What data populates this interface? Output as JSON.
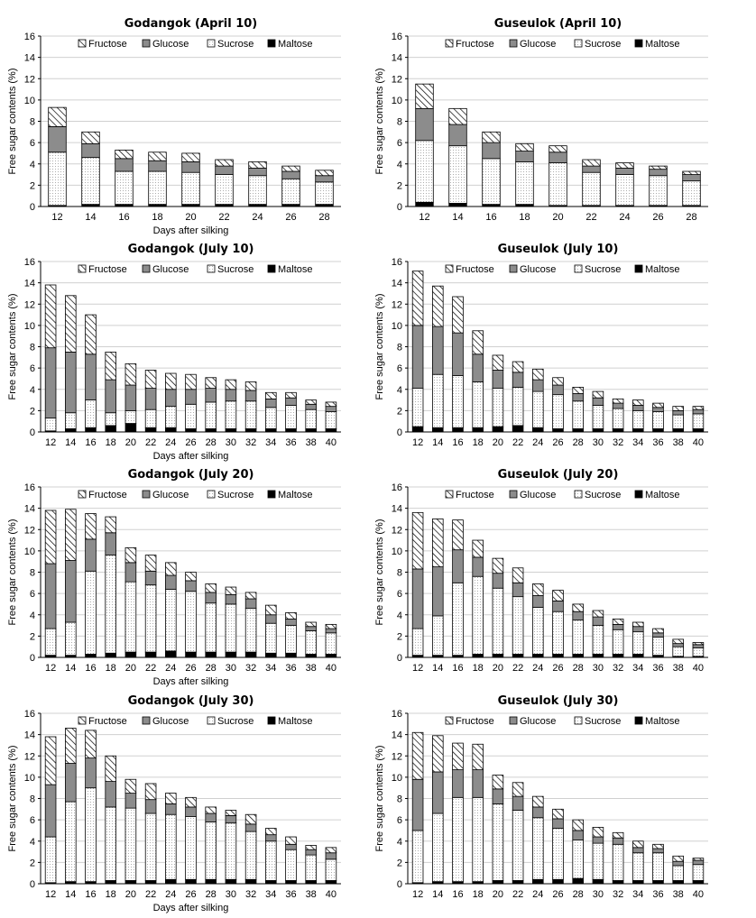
{
  "figure": {
    "segment_order": [
      "Maltose",
      "Sucrose",
      "Glucose",
      "Fructose"
    ],
    "legend_order": [
      "Fructose",
      "Glucose",
      "Sucrose",
      "Maltose"
    ],
    "colors": {
      "Fructose": "#ffffff",
      "Glucose": "#8c8c8c",
      "Sucrose": "#ffffff",
      "Maltose": "#000000"
    },
    "patterns": {
      "Fructose": "diagonal-hatch",
      "Glucose": "solid-gray",
      "Sucrose": "fine-dots",
      "Maltose": "solid-black"
    }
  },
  "chart_data": [
    {
      "type": "bar",
      "stacked": true,
      "title": "Godangok (April 10)",
      "xlabel": "Days after silking",
      "ylabel": "Free sugar contents (%)",
      "ylim": [
        0,
        16
      ],
      "yticks": [
        0,
        2,
        4,
        6,
        8,
        10,
        12,
        14,
        16
      ],
      "grid": true,
      "legend": "top",
      "categories": [
        "12",
        "14",
        "16",
        "18",
        "20",
        "22",
        "24",
        "26",
        "28"
      ],
      "series": [
        {
          "name": "Maltose",
          "values": [
            0.1,
            0.2,
            0.2,
            0.2,
            0.2,
            0.2,
            0.2,
            0.2,
            0.2
          ]
        },
        {
          "name": "Sucrose",
          "values": [
            5.0,
            4.4,
            3.1,
            3.1,
            3.0,
            2.8,
            2.7,
            2.4,
            2.1
          ]
        },
        {
          "name": "Glucose",
          "values": [
            2.4,
            1.3,
            1.2,
            1.0,
            1.0,
            0.8,
            0.7,
            0.7,
            0.6
          ]
        },
        {
          "name": "Fructose",
          "values": [
            1.8,
            1.1,
            0.8,
            0.8,
            0.8,
            0.6,
            0.6,
            0.5,
            0.5
          ]
        }
      ]
    },
    {
      "type": "bar",
      "stacked": true,
      "title": "Guseulok (April 10)",
      "xlabel": "",
      "ylabel": "Free sugar contents (%)",
      "ylim": [
        0,
        16
      ],
      "yticks": [
        0,
        2,
        4,
        6,
        8,
        10,
        12,
        14,
        16
      ],
      "grid": true,
      "legend": "top",
      "categories": [
        "12",
        "14",
        "16",
        "18",
        "20",
        "22",
        "24",
        "26",
        "28"
      ],
      "series": [
        {
          "name": "Maltose",
          "values": [
            0.4,
            0.3,
            0.2,
            0.2,
            0.1,
            0.1,
            0.1,
            0.1,
            0.1
          ]
        },
        {
          "name": "Sucrose",
          "values": [
            5.8,
            5.4,
            4.3,
            4.0,
            4.0,
            3.1,
            2.9,
            2.8,
            2.3
          ]
        },
        {
          "name": "Glucose",
          "values": [
            3.0,
            2.0,
            1.5,
            1.0,
            1.0,
            0.6,
            0.6,
            0.6,
            0.6
          ]
        },
        {
          "name": "Fructose",
          "values": [
            2.3,
            1.5,
            1.0,
            0.7,
            0.6,
            0.6,
            0.5,
            0.3,
            0.3
          ]
        }
      ]
    },
    {
      "type": "bar",
      "stacked": true,
      "title": "Godangok (July 10)",
      "xlabel": "Days after silking",
      "ylabel": "Free sugar contents (%)",
      "ylim": [
        0,
        16
      ],
      "yticks": [
        0,
        2,
        4,
        6,
        8,
        10,
        12,
        14,
        16
      ],
      "grid": true,
      "legend": "top",
      "categories": [
        "12",
        "14",
        "16",
        "18",
        "20",
        "22",
        "24",
        "26",
        "28",
        "30",
        "32",
        "34",
        "36",
        "38",
        "40"
      ],
      "series": [
        {
          "name": "Maltose",
          "values": [
            0.1,
            0.3,
            0.4,
            0.6,
            0.8,
            0.4,
            0.4,
            0.3,
            0.3,
            0.3,
            0.3,
            0.3,
            0.3,
            0.3,
            0.3
          ]
        },
        {
          "name": "Sucrose",
          "values": [
            1.2,
            1.5,
            2.6,
            1.2,
            1.2,
            1.7,
            2.0,
            2.3,
            2.5,
            2.6,
            2.6,
            2.0,
            2.2,
            1.8,
            1.6
          ]
        },
        {
          "name": "Glucose",
          "values": [
            6.6,
            5.7,
            4.3,
            3.1,
            2.4,
            2.0,
            1.6,
            1.4,
            1.3,
            1.1,
            1.0,
            0.8,
            0.7,
            0.5,
            0.5
          ]
        },
        {
          "name": "Fructose",
          "values": [
            5.9,
            5.3,
            3.7,
            2.6,
            2.0,
            1.7,
            1.5,
            1.4,
            1.0,
            0.9,
            0.8,
            0.6,
            0.5,
            0.4,
            0.4
          ]
        }
      ]
    },
    {
      "type": "bar",
      "stacked": true,
      "title": "Guseulok (July 10)",
      "xlabel": "",
      "ylabel": "Free sugar contents (%)",
      "ylim": [
        0,
        16
      ],
      "yticks": [
        0,
        2,
        4,
        6,
        8,
        10,
        12,
        14,
        16
      ],
      "grid": true,
      "legend": "top",
      "categories": [
        "12",
        "14",
        "16",
        "18",
        "20",
        "22",
        "24",
        "26",
        "28",
        "30",
        "32",
        "34",
        "36",
        "38",
        "40"
      ],
      "series": [
        {
          "name": "Maltose",
          "values": [
            0.5,
            0.4,
            0.4,
            0.4,
            0.5,
            0.6,
            0.4,
            0.3,
            0.3,
            0.3,
            0.3,
            0.3,
            0.3,
            0.3,
            0.3
          ]
        },
        {
          "name": "Sucrose",
          "values": [
            3.6,
            5.0,
            4.9,
            4.3,
            3.6,
            3.6,
            3.4,
            3.2,
            2.6,
            2.2,
            1.9,
            1.7,
            1.6,
            1.3,
            1.4
          ]
        },
        {
          "name": "Glucose",
          "values": [
            5.9,
            4.5,
            4.0,
            2.6,
            1.7,
            1.4,
            1.1,
            0.9,
            0.7,
            0.7,
            0.5,
            0.5,
            0.4,
            0.4,
            0.4
          ]
        },
        {
          "name": "Fructose",
          "values": [
            5.1,
            3.8,
            3.4,
            2.2,
            1.4,
            1.0,
            1.0,
            0.7,
            0.6,
            0.6,
            0.4,
            0.5,
            0.4,
            0.4,
            0.3
          ]
        }
      ]
    },
    {
      "type": "bar",
      "stacked": true,
      "title": "Godangok (July 20)",
      "xlabel": "Days after silking",
      "ylabel": "Free sugar contents (%)",
      "ylim": [
        0,
        16
      ],
      "yticks": [
        0,
        2,
        4,
        6,
        8,
        10,
        12,
        14,
        16
      ],
      "grid": true,
      "legend": "top",
      "categories": [
        "12",
        "14",
        "16",
        "18",
        "20",
        "22",
        "24",
        "26",
        "28",
        "30",
        "32",
        "34",
        "36",
        "38",
        "40"
      ],
      "series": [
        {
          "name": "Maltose",
          "values": [
            0.2,
            0.2,
            0.3,
            0.4,
            0.5,
            0.5,
            0.6,
            0.5,
            0.5,
            0.5,
            0.5,
            0.4,
            0.4,
            0.3,
            0.3
          ]
        },
        {
          "name": "Sucrose",
          "values": [
            2.5,
            3.1,
            7.8,
            9.2,
            6.6,
            6.3,
            5.8,
            5.7,
            4.6,
            4.5,
            4.1,
            2.8,
            2.6,
            2.2,
            2.0
          ]
        },
        {
          "name": "Glucose",
          "values": [
            6.1,
            5.8,
            3.0,
            2.1,
            1.8,
            1.3,
            1.3,
            1.0,
            1.0,
            0.9,
            0.9,
            0.8,
            0.6,
            0.4,
            0.4
          ]
        },
        {
          "name": "Fructose",
          "values": [
            5.0,
            4.8,
            2.4,
            1.5,
            1.4,
            1.5,
            1.2,
            0.8,
            0.8,
            0.7,
            0.6,
            0.9,
            0.6,
            0.4,
            0.4
          ]
        }
      ]
    },
    {
      "type": "bar",
      "stacked": true,
      "title": "Guseulok (July 20)",
      "xlabel": "",
      "ylabel": "Free sugar contents (%)",
      "ylim": [
        0,
        16
      ],
      "yticks": [
        0,
        2,
        4,
        6,
        8,
        10,
        12,
        14,
        16
      ],
      "grid": true,
      "legend": "top",
      "categories": [
        "12",
        "14",
        "16",
        "18",
        "20",
        "22",
        "24",
        "26",
        "28",
        "30",
        "32",
        "34",
        "36",
        "38",
        "40"
      ],
      "series": [
        {
          "name": "Maltose",
          "values": [
            0.2,
            0.2,
            0.2,
            0.3,
            0.3,
            0.3,
            0.3,
            0.3,
            0.3,
            0.3,
            0.3,
            0.3,
            0.2,
            0.1,
            0.1
          ]
        },
        {
          "name": "Sucrose",
          "values": [
            2.5,
            3.7,
            6.8,
            7.3,
            6.2,
            5.4,
            4.4,
            4.0,
            3.2,
            2.7,
            2.3,
            2.1,
            1.7,
            0.9,
            0.8
          ]
        },
        {
          "name": "Glucose",
          "values": [
            5.6,
            4.6,
            3.1,
            1.8,
            1.4,
            1.3,
            1.1,
            1.0,
            0.8,
            0.8,
            0.5,
            0.5,
            0.4,
            0.3,
            0.3
          ]
        },
        {
          "name": "Fructose",
          "values": [
            5.3,
            4.5,
            2.8,
            1.6,
            1.4,
            1.4,
            1.1,
            1.0,
            0.7,
            0.6,
            0.5,
            0.4,
            0.4,
            0.4,
            0.2
          ]
        }
      ]
    },
    {
      "type": "bar",
      "stacked": true,
      "title": "Godangok (July 30)",
      "xlabel": "Days after silking",
      "ylabel": "Free sugar contents (%)",
      "ylim": [
        0,
        16
      ],
      "yticks": [
        0,
        2,
        4,
        6,
        8,
        10,
        12,
        14,
        16
      ],
      "grid": true,
      "legend": "top",
      "categories": [
        "12",
        "14",
        "16",
        "18",
        "20",
        "22",
        "24",
        "26",
        "28",
        "30",
        "32",
        "34",
        "36",
        "38",
        "40"
      ],
      "series": [
        {
          "name": "Maltose",
          "values": [
            0.1,
            0.2,
            0.2,
            0.3,
            0.3,
            0.3,
            0.4,
            0.4,
            0.4,
            0.4,
            0.4,
            0.3,
            0.3,
            0.3,
            0.3
          ]
        },
        {
          "name": "Sucrose",
          "values": [
            4.3,
            7.5,
            8.8,
            6.9,
            6.8,
            6.3,
            6.1,
            5.9,
            5.4,
            5.3,
            4.5,
            3.7,
            2.9,
            2.4,
            2.0
          ]
        },
        {
          "name": "Glucose",
          "values": [
            4.9,
            3.6,
            2.8,
            2.4,
            1.4,
            1.3,
            1.0,
            0.9,
            0.8,
            0.7,
            0.7,
            0.6,
            0.5,
            0.5,
            0.6
          ]
        },
        {
          "name": "Fructose",
          "values": [
            4.5,
            3.3,
            2.6,
            2.4,
            1.3,
            1.5,
            1.0,
            0.9,
            0.6,
            0.5,
            0.9,
            0.6,
            0.7,
            0.4,
            0.5
          ]
        }
      ]
    },
    {
      "type": "bar",
      "stacked": true,
      "title": "Guseulok (July 30)",
      "xlabel": "",
      "ylabel": "Free sugar contents (%)",
      "ylim": [
        0,
        16
      ],
      "yticks": [
        0,
        2,
        4,
        6,
        8,
        10,
        12,
        14,
        16
      ],
      "grid": true,
      "legend": "top",
      "categories": [
        "12",
        "14",
        "16",
        "18",
        "20",
        "22",
        "24",
        "26",
        "28",
        "30",
        "32",
        "34",
        "36",
        "38",
        "40"
      ],
      "series": [
        {
          "name": "Maltose",
          "values": [
            0.1,
            0.2,
            0.2,
            0.2,
            0.3,
            0.3,
            0.4,
            0.4,
            0.5,
            0.4,
            0.3,
            0.3,
            0.3,
            0.3,
            0.3
          ]
        },
        {
          "name": "Sucrose",
          "values": [
            4.9,
            6.4,
            7.9,
            7.9,
            7.2,
            6.6,
            5.8,
            4.8,
            3.6,
            3.4,
            3.4,
            2.6,
            2.6,
            1.4,
            1.5
          ]
        },
        {
          "name": "Glucose",
          "values": [
            4.8,
            3.9,
            2.6,
            2.6,
            1.4,
            1.3,
            1.0,
            0.9,
            0.9,
            0.6,
            0.6,
            0.5,
            0.4,
            0.4,
            0.4
          ]
        },
        {
          "name": "Fructose",
          "values": [
            4.4,
            3.4,
            2.5,
            2.4,
            1.3,
            1.3,
            1.0,
            0.9,
            1.0,
            0.9,
            0.5,
            0.6,
            0.4,
            0.5,
            0.2
          ]
        }
      ]
    }
  ]
}
